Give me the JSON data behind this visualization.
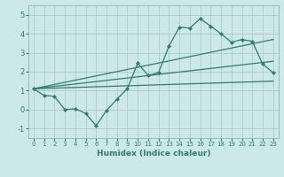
{
  "xlabel": "Humidex (Indice chaleur)",
  "ylabel": "",
  "background_color": "#cce8e8",
  "grid_color": "#b0c8c8",
  "line_color": "#2e7d6e",
  "xlim": [
    -0.5,
    23.5
  ],
  "ylim": [
    -1.5,
    5.5
  ],
  "xticks": [
    0,
    1,
    2,
    3,
    4,
    5,
    6,
    7,
    8,
    9,
    10,
    11,
    12,
    13,
    14,
    15,
    16,
    17,
    18,
    19,
    20,
    21,
    22,
    23
  ],
  "yticks": [
    -1,
    0,
    1,
    2,
    3,
    4,
    5
  ],
  "line1_x": [
    0,
    1,
    2,
    3,
    4,
    5,
    6,
    7,
    8,
    9,
    10,
    11,
    12,
    13,
    14,
    15,
    16,
    17,
    18,
    19,
    20,
    21,
    22,
    23
  ],
  "line1_y": [
    1.1,
    0.75,
    0.7,
    0.0,
    0.05,
    -0.2,
    -0.85,
    -0.05,
    0.55,
    1.1,
    2.45,
    1.8,
    1.95,
    3.35,
    4.35,
    4.3,
    4.8,
    4.4,
    4.0,
    3.55,
    3.7,
    3.6,
    2.4,
    1.95
  ],
  "trend1_x": [
    0,
    23
  ],
  "trend1_y": [
    1.1,
    1.5
  ],
  "trend2_x": [
    0,
    23
  ],
  "trend2_y": [
    1.1,
    3.7
  ],
  "trend3_x": [
    0,
    23
  ],
  "trend3_y": [
    1.1,
    2.55
  ]
}
